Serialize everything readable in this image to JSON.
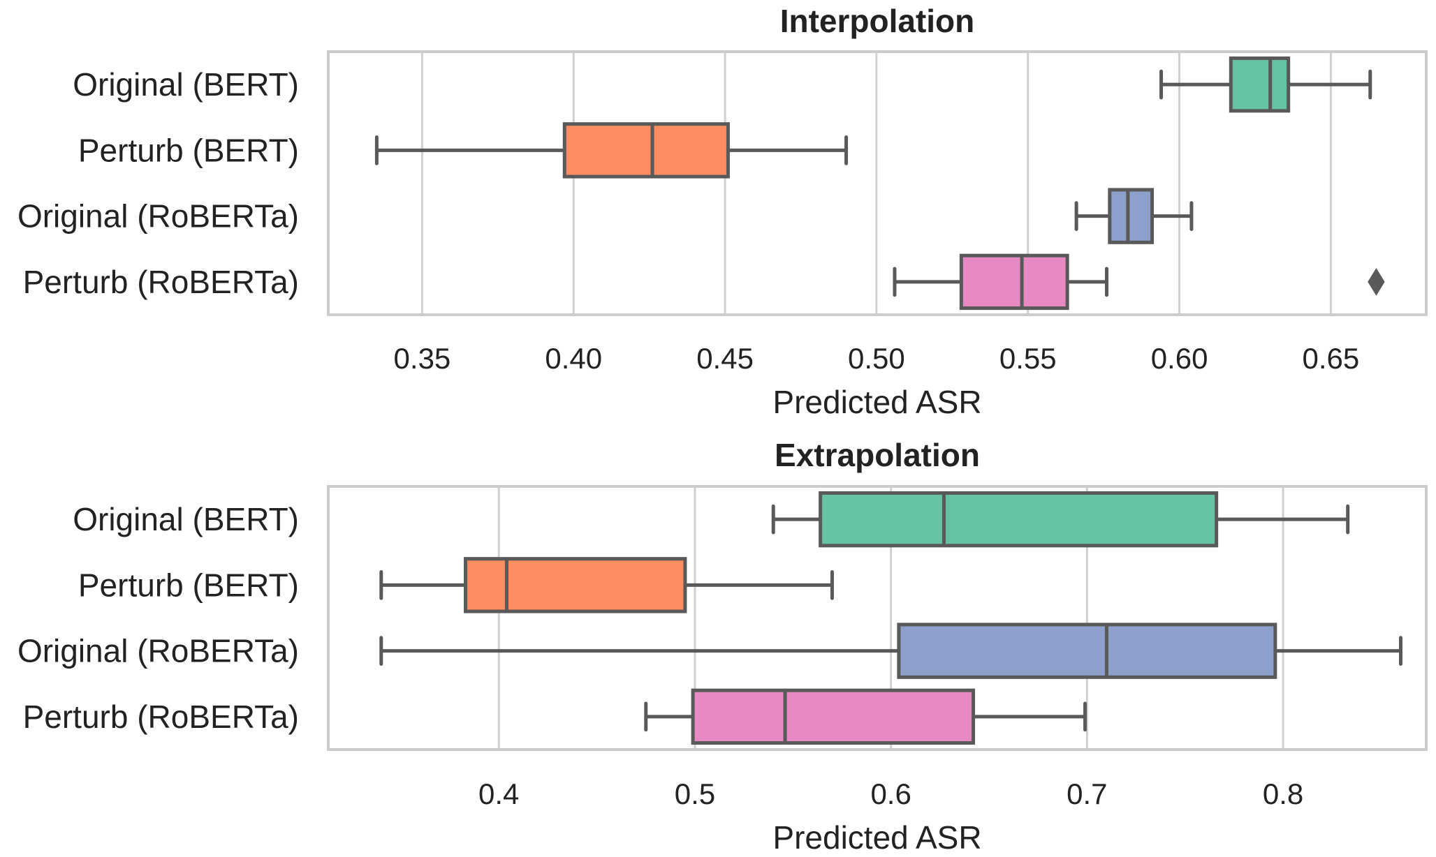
{
  "chart_data": [
    {
      "type": "box",
      "title": "Interpolation",
      "xlabel": "Predicted ASR",
      "ylabel": "",
      "orientation": "horizontal",
      "grid": "x",
      "xlim": [
        0.319,
        0.6815
      ],
      "xticks": [
        0.35,
        0.4,
        0.45,
        0.5,
        0.55,
        0.6,
        0.65
      ],
      "xtick_labels": [
        "0.35",
        "0.40",
        "0.45",
        "0.50",
        "0.55",
        "0.60",
        "0.65"
      ],
      "categories": [
        "Original (BERT)",
        "Perturb (BERT)",
        "Original (RoBERTa)",
        "Perturb (RoBERTa)"
      ],
      "colors": [
        "#66c2a5",
        "#fc8d62",
        "#8da0cb",
        "#e78ac3"
      ],
      "boxes": [
        {
          "whisker_low": 0.594,
          "q1": 0.617,
          "median": 0.63,
          "q3": 0.636,
          "whisker_high": 0.663,
          "outliers": []
        },
        {
          "whisker_low": 0.335,
          "q1": 0.397,
          "median": 0.426,
          "q3": 0.451,
          "whisker_high": 0.49,
          "outliers": []
        },
        {
          "whisker_low": 0.566,
          "q1": 0.577,
          "median": 0.583,
          "q3": 0.591,
          "whisker_high": 0.604,
          "outliers": []
        },
        {
          "whisker_low": 0.506,
          "q1": 0.528,
          "median": 0.548,
          "q3": 0.563,
          "whisker_high": 0.576,
          "outliers": [
            0.665
          ]
        }
      ]
    },
    {
      "type": "box",
      "title": "Extrapolation",
      "xlabel": "Predicted ASR",
      "ylabel": "",
      "orientation": "horizontal",
      "grid": "x",
      "xlim": [
        0.313,
        0.873
      ],
      "xticks": [
        0.4,
        0.5,
        0.6,
        0.7,
        0.8
      ],
      "xtick_labels": [
        "0.4",
        "0.5",
        "0.6",
        "0.7",
        "0.8"
      ],
      "categories": [
        "Original (BERT)",
        "Perturb (BERT)",
        "Original (RoBERTa)",
        "Perturb (RoBERTa)"
      ],
      "colors": [
        "#66c2a5",
        "#fc8d62",
        "#8da0cb",
        "#e78ac3"
      ],
      "boxes": [
        {
          "whisker_low": 0.54,
          "q1": 0.564,
          "median": 0.627,
          "q3": 0.766,
          "whisker_high": 0.833,
          "outliers": []
        },
        {
          "whisker_low": 0.34,
          "q1": 0.383,
          "median": 0.404,
          "q3": 0.495,
          "whisker_high": 0.57,
          "outliers": []
        },
        {
          "whisker_low": 0.34,
          "q1": 0.604,
          "median": 0.71,
          "q3": 0.796,
          "whisker_high": 0.86,
          "outliers": []
        },
        {
          "whisker_low": 0.475,
          "q1": 0.499,
          "median": 0.546,
          "q3": 0.642,
          "whisker_high": 0.699,
          "outliers": []
        }
      ]
    }
  ]
}
